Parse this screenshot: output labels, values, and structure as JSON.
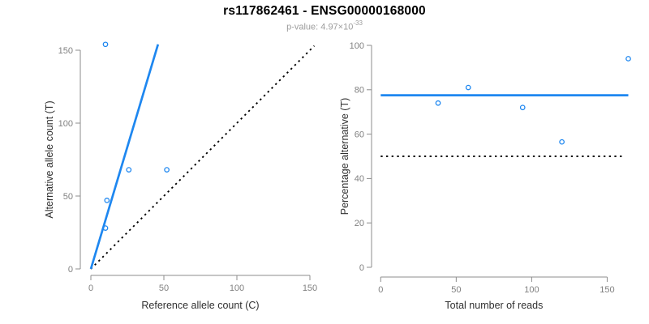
{
  "chart_data": {
    "type": "scatter",
    "figure_title": "rs117862461 - ENSG00000168000",
    "p_value_base": "p-value: 4.97×10",
    "p_value_exponent": "-33",
    "colors": {
      "accent_blue": "#1E87F0",
      "reference_line_black": "#000000",
      "axis_gray": "#8C8C8C",
      "tick_label_gray": "#808080",
      "axis_title_dark": "#303030",
      "subtitle_gray": "#9C9C9C"
    },
    "panels": [
      {
        "id": "allele-counts",
        "xlabel": "Reference allele count (C)",
        "ylabel": "Alternative allele count (T)",
        "xlim": [
          0,
          150
        ],
        "ylim": [
          0,
          150
        ],
        "xticks": [
          0,
          50,
          100,
          150
        ],
        "yticks": [
          0,
          50,
          100,
          150
        ],
        "grid": false,
        "legend": false,
        "points": [
          [
            10,
            154
          ],
          [
            11,
            47
          ],
          [
            10,
            28
          ],
          [
            26,
            68
          ],
          [
            52,
            68
          ]
        ],
        "fit_line": {
          "style": "solid",
          "x1": 0,
          "y1": 0,
          "x2": 46,
          "y2": 154
        },
        "reference_line": {
          "style": "dotted",
          "x1": 0,
          "y1": 0,
          "x2": 153,
          "y2": 153
        }
      },
      {
        "id": "percentage-alternative",
        "xlabel": "Total number of reads",
        "ylabel": "Percentage alternative (T)",
        "xlim": [
          0,
          165
        ],
        "ylim": [
          0,
          100
        ],
        "xticks": [
          0,
          50,
          100,
          150
        ],
        "yticks": [
          0,
          20,
          40,
          60,
          80,
          100
        ],
        "grid": false,
        "legend": false,
        "points": [
          [
            38,
            74
          ],
          [
            58,
            81
          ],
          [
            94,
            72
          ],
          [
            120,
            56.5
          ],
          [
            164,
            94
          ]
        ],
        "fit_line": {
          "style": "solid",
          "x1": 0,
          "y1": 77.5,
          "x2": 164,
          "y2": 77.5
        },
        "reference_line": {
          "style": "dotted",
          "x1": 0,
          "y1": 50,
          "x2": 162,
          "y2": 50
        }
      }
    ]
  }
}
